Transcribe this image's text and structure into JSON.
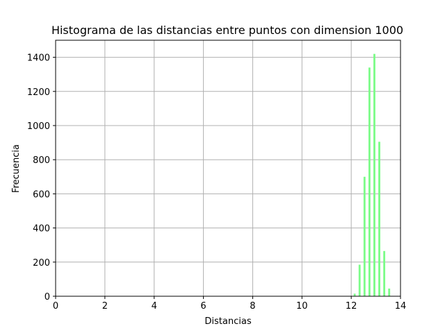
{
  "chart_data": {
    "type": "bar",
    "title": "Histograma de las distancias entre puntos con dimension 1000",
    "xlabel": "Distancias",
    "ylabel": "Frecuencia",
    "xlim": [
      0,
      14
    ],
    "ylim": [
      0,
      1500
    ],
    "xticks": [
      0,
      2,
      4,
      6,
      8,
      10,
      12,
      14
    ],
    "yticks": [
      0,
      200,
      400,
      600,
      800,
      1000,
      1200,
      1400
    ],
    "grid": true,
    "bar_color": "#7cfc88",
    "bar_width": 0.08,
    "x": [
      12.14,
      12.34,
      12.54,
      12.74,
      12.94,
      13.14,
      13.34,
      13.54
    ],
    "values": [
      15,
      185,
      700,
      1340,
      1420,
      905,
      265,
      45
    ]
  }
}
